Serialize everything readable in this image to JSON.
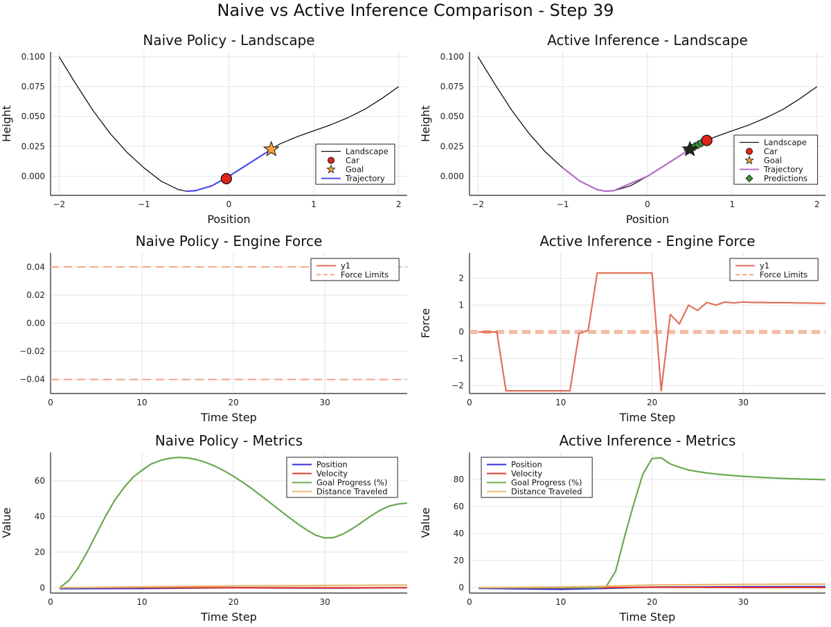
{
  "suptitle": "Naive vs Active Inference Comparison - Step 39",
  "colors": {
    "landscape": "#111111",
    "car": "#e2231a",
    "goal": "#f2a33a",
    "trajectory_naive": "#4a4af0",
    "trajectory_active": "#b06cc8",
    "predictions": "#3c8f3c",
    "force": "#e2705a",
    "limits": "#f4a582",
    "position": "#2b2bd9",
    "velocity": "#e23b2e",
    "progress": "#6aa84f",
    "distance": "#e8b86d",
    "grid": "#e3e3e3"
  },
  "chart_data": [
    {
      "id": "naive-landscape",
      "type": "line",
      "title": "Naive Policy - Landscape",
      "xlabel": "Position",
      "ylabel": "Height",
      "xlim": [
        -2.1,
        2.1
      ],
      "ylim": [
        -0.016,
        0.104
      ],
      "xticks": [
        -2,
        -1,
        0,
        1,
        2
      ],
      "yticks": [
        0.0,
        0.025,
        0.05,
        0.075,
        0.1
      ],
      "xtick_labels": [
        "−2",
        "−1",
        "0",
        "1",
        "2"
      ],
      "ytick_labels": [
        "0.000",
        "0.025",
        "0.050",
        "0.075",
        "0.100"
      ],
      "legend": [
        "Landscape",
        "Car",
        "Goal",
        "Trajectory"
      ],
      "series": [
        {
          "name": "Landscape",
          "x": [
            -2.0,
            -1.8,
            -1.6,
            -1.4,
            -1.2,
            -1.0,
            -0.8,
            -0.6,
            -0.5,
            -0.4,
            -0.2,
            0.0,
            0.2,
            0.4,
            0.5,
            0.6,
            0.8,
            1.0,
            1.2,
            1.4,
            1.6,
            1.8,
            2.0
          ],
          "y": [
            0.1,
            0.077,
            0.055,
            0.036,
            0.02,
            0.007,
            -0.004,
            -0.011,
            -0.0125,
            -0.0122,
            -0.008,
            0.0,
            0.009,
            0.018,
            0.0225,
            0.027,
            0.033,
            0.038,
            0.043,
            0.049,
            0.056,
            0.065,
            0.075
          ]
        },
        {
          "name": "Trajectory",
          "x": [
            -0.5,
            -0.4,
            -0.2,
            0.0,
            0.2,
            0.4,
            0.5
          ],
          "y": [
            -0.0125,
            -0.0122,
            -0.008,
            0.0,
            0.009,
            0.018,
            0.0225
          ]
        }
      ],
      "car": {
        "x": -0.03,
        "y": -0.002
      },
      "goal": {
        "x": 0.5,
        "y": 0.0225
      }
    },
    {
      "id": "active-landscape",
      "type": "line",
      "title": "Active Inference - Landscape",
      "xlabel": "Position",
      "ylabel": "Height",
      "xlim": [
        -2.1,
        2.1
      ],
      "ylim": [
        -0.016,
        0.104
      ],
      "xticks": [
        -2,
        -1,
        0,
        1,
        2
      ],
      "yticks": [
        0.0,
        0.025,
        0.05,
        0.075,
        0.1
      ],
      "xtick_labels": [
        "−2",
        "−1",
        "0",
        "1",
        "2"
      ],
      "ytick_labels": [
        "0.000",
        "0.025",
        "0.050",
        "0.075",
        "0.100"
      ],
      "legend": [
        "Landscape",
        "Car",
        "Goal",
        "Trajectory",
        "Predictions"
      ],
      "series": [
        {
          "name": "Landscape",
          "x": [
            -2.0,
            -1.8,
            -1.6,
            -1.4,
            -1.2,
            -1.0,
            -0.8,
            -0.6,
            -0.5,
            -0.4,
            -0.2,
            0.0,
            0.2,
            0.4,
            0.5,
            0.6,
            0.8,
            1.0,
            1.2,
            1.4,
            1.6,
            1.8,
            2.0
          ],
          "y": [
            0.1,
            0.077,
            0.055,
            0.036,
            0.02,
            0.007,
            -0.004,
            -0.011,
            -0.0125,
            -0.0122,
            -0.008,
            0.0,
            0.009,
            0.018,
            0.0225,
            0.027,
            0.033,
            0.038,
            0.043,
            0.049,
            0.056,
            0.065,
            0.075
          ]
        },
        {
          "name": "Trajectory",
          "x": [
            -1.0,
            -0.8,
            -0.6,
            -0.5,
            -0.4,
            -0.2,
            0.0,
            0.2,
            0.4,
            0.5,
            0.6,
            0.7
          ],
          "y": [
            0.007,
            -0.004,
            -0.011,
            -0.0125,
            -0.0122,
            -0.006,
            0.0,
            0.009,
            0.018,
            0.0225,
            0.027,
            0.03
          ]
        }
      ],
      "car": {
        "x": 0.7,
        "y": 0.03
      },
      "goal": {
        "x": 0.5,
        "y": 0.0225
      },
      "predictions": {
        "x": [
          0.48,
          0.52,
          0.56,
          0.6,
          0.64
        ],
        "y": [
          0.022,
          0.0235,
          0.025,
          0.0265,
          0.028
        ]
      }
    },
    {
      "id": "naive-force",
      "type": "line",
      "title": "Naive Policy - Engine Force",
      "xlabel": "Time Step",
      "ylabel": "",
      "xlim": [
        0,
        39
      ],
      "ylim": [
        -0.05,
        0.05
      ],
      "xticks": [
        0,
        10,
        20,
        30
      ],
      "yticks": [
        -0.04,
        -0.02,
        0.0,
        0.02,
        0.04
      ],
      "xtick_labels": [
        "0",
        "10",
        "20",
        "30"
      ],
      "ytick_labels": [
        "−0.04",
        "−0.02",
        "0.00",
        "0.02",
        "0.04"
      ],
      "legend": [
        "y1",
        "Force Limits"
      ],
      "series": [],
      "limits": [
        0.04,
        -0.04
      ]
    },
    {
      "id": "active-force",
      "type": "line",
      "title": "Active Inference - Engine Force",
      "xlabel": "Time Step",
      "ylabel": "Force",
      "xlim": [
        0,
        39
      ],
      "ylim": [
        -2.3,
        2.95
      ],
      "xticks": [
        0,
        10,
        20,
        30
      ],
      "yticks": [
        -2,
        -1,
        0,
        1,
        2
      ],
      "xtick_labels": [
        "0",
        "10",
        "20",
        "30"
      ],
      "ytick_labels": [
        "−2",
        "−1",
        "0",
        "1",
        "2"
      ],
      "legend": [
        "y1",
        "Force Limits"
      ],
      "series": [
        {
          "name": "y1",
          "x": [
            1,
            2,
            3,
            4,
            5,
            6,
            7,
            8,
            9,
            10,
            11,
            12,
            13,
            14,
            15,
            16,
            17,
            18,
            19,
            20,
            21,
            22,
            23,
            24,
            25,
            26,
            27,
            28,
            29,
            30,
            31,
            32,
            33,
            34,
            35,
            36,
            37,
            38,
            39
          ],
          "y": [
            0,
            0,
            0,
            -2.2,
            -2.2,
            -2.2,
            -2.2,
            -2.2,
            -2.2,
            -2.2,
            -2.2,
            -0.05,
            0.05,
            2.2,
            2.2,
            2.2,
            2.2,
            2.2,
            2.2,
            2.2,
            -2.2,
            0.65,
            0.3,
            1.0,
            0.8,
            1.1,
            1.0,
            1.12,
            1.08,
            1.12,
            1.1,
            1.1,
            1.09,
            1.09,
            1.09,
            1.08,
            1.08,
            1.07,
            1.07
          ]
        }
      ],
      "limits": [
        0.04,
        -0.04
      ]
    },
    {
      "id": "naive-metrics",
      "type": "line",
      "title": "Naive Policy - Metrics",
      "xlabel": "Time Step",
      "ylabel": "Value",
      "xlim": [
        0,
        39
      ],
      "ylim": [
        -3,
        76
      ],
      "xticks": [
        0,
        10,
        20,
        30
      ],
      "yticks": [
        0,
        20,
        40,
        60
      ],
      "xtick_labels": [
        "0",
        "10",
        "20",
        "30"
      ],
      "ytick_labels": [
        "0",
        "20",
        "40",
        "60"
      ],
      "legend": [
        "Position",
        "Velocity",
        "Goal Progress (%)",
        "Distance Traveled"
      ],
      "series": [
        {
          "name": "Position",
          "x": [
            1,
            10,
            20,
            30,
            39
          ],
          "y": [
            -0.5,
            -0.4,
            0,
            -0.2,
            0
          ]
        },
        {
          "name": "Velocity",
          "x": [
            1,
            10,
            20,
            30,
            39
          ],
          "y": [
            0,
            0.1,
            0,
            -0.05,
            0
          ]
        },
        {
          "name": "Goal Progress (%)",
          "x": [
            1,
            2,
            3,
            4,
            5,
            6,
            7,
            8,
            9,
            10,
            11,
            12,
            13,
            14,
            15,
            16,
            17,
            18,
            19,
            20,
            21,
            22,
            23,
            24,
            25,
            26,
            27,
            28,
            29,
            30,
            31,
            32,
            33,
            34,
            35,
            36,
            37,
            38,
            39
          ],
          "y": [
            0,
            4,
            11,
            20,
            30,
            40,
            49,
            56,
            62,
            66,
            69.5,
            71.5,
            72.7,
            73.2,
            72.9,
            71.9,
            70.3,
            68.2,
            65.6,
            62.6,
            59.3,
            55.7,
            51.8,
            47.8,
            43.8,
            39.8,
            36,
            32.5,
            29.5,
            27.9,
            28.2,
            30.2,
            33.2,
            36.6,
            40.2,
            43.4,
            45.8,
            47,
            47.5
          ]
        },
        {
          "name": "Distance Traveled",
          "x": [
            1,
            10,
            20,
            30,
            39
          ],
          "y": [
            0,
            0.5,
            1.0,
            1.3,
            1.5
          ]
        }
      ]
    },
    {
      "id": "active-metrics",
      "type": "line",
      "title": "Active Inference - Metrics",
      "xlabel": "Time Step",
      "ylabel": "Value",
      "xlim": [
        0,
        39
      ],
      "ylim": [
        -4,
        100
      ],
      "xticks": [
        0,
        10,
        20,
        30
      ],
      "yticks": [
        0,
        20,
        40,
        60,
        80
      ],
      "xtick_labels": [
        "0",
        "10",
        "20",
        "30"
      ],
      "ytick_labels": [
        "0",
        "20",
        "40",
        "60",
        "80"
      ],
      "legend": [
        "Position",
        "Velocity",
        "Goal Progress (%)",
        "Distance Traveled"
      ],
      "series": [
        {
          "name": "Position",
          "x": [
            1,
            10,
            15,
            20,
            30,
            39
          ],
          "y": [
            -0.5,
            -1.2,
            -0.5,
            0.4,
            0.6,
            0.7
          ]
        },
        {
          "name": "Velocity",
          "x": [
            1,
            10,
            20,
            30,
            39
          ],
          "y": [
            0,
            -0.2,
            0.3,
            0.1,
            0.1
          ]
        },
        {
          "name": "Goal Progress (%)",
          "x": [
            1,
            2,
            3,
            4,
            5,
            6,
            7,
            8,
            9,
            10,
            11,
            12,
            13,
            14,
            15,
            16,
            17,
            18,
            19,
            20,
            21,
            22,
            23,
            24,
            25,
            26,
            27,
            28,
            29,
            30,
            31,
            32,
            33,
            34,
            35,
            36,
            37,
            38,
            39
          ],
          "y": [
            0,
            0,
            0,
            0,
            0,
            0,
            0,
            0,
            0,
            0,
            0,
            0,
            0,
            0,
            1,
            12,
            38,
            62,
            84,
            95.5,
            96,
            91.5,
            89,
            87,
            85.8,
            84.8,
            84,
            83.4,
            82.8,
            82.3,
            81.9,
            81.5,
            81.2,
            80.9,
            80.6,
            80.4,
            80.2,
            80,
            79.8
          ]
        },
        {
          "name": "Distance Traveled",
          "x": [
            1,
            10,
            15,
            20,
            30,
            39
          ],
          "y": [
            0,
            0.5,
            1.0,
            2.0,
            2.4,
            2.6
          ]
        }
      ]
    }
  ]
}
